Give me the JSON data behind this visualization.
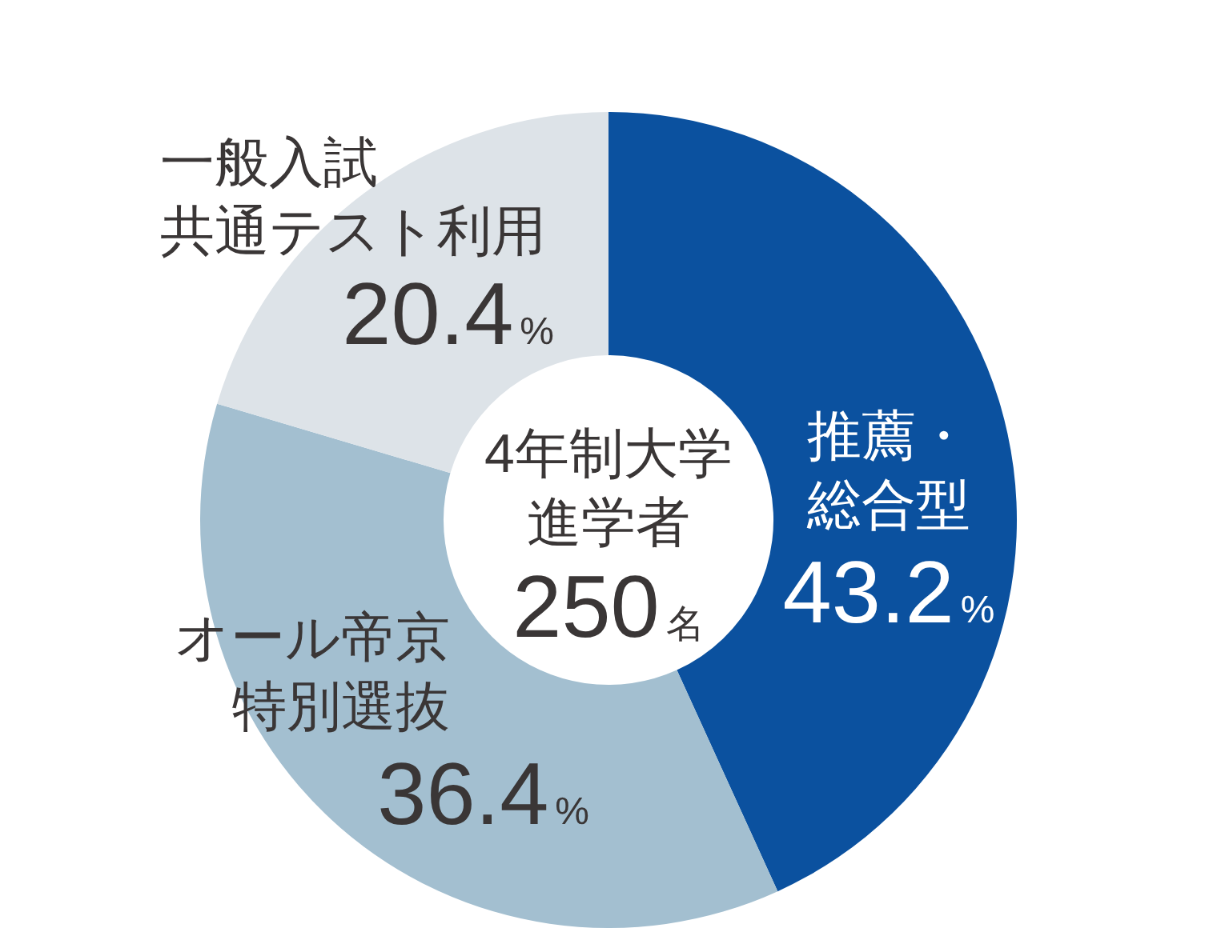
{
  "chart_data": {
    "type": "donut",
    "title": "4年制大学進学者",
    "subtitle": "250名",
    "categories": [
      "推薦・総合型",
      "オール帝京特別選抜",
      "一般入試共通テスト利用"
    ],
    "values": [
      43.2,
      36.4,
      20.4
    ],
    "colors": [
      "#0b519f",
      "#a3bfd0",
      "#dde3e8"
    ],
    "value_labels": [
      "43.2%",
      "36.4%",
      "20.4%"
    ]
  }
}
